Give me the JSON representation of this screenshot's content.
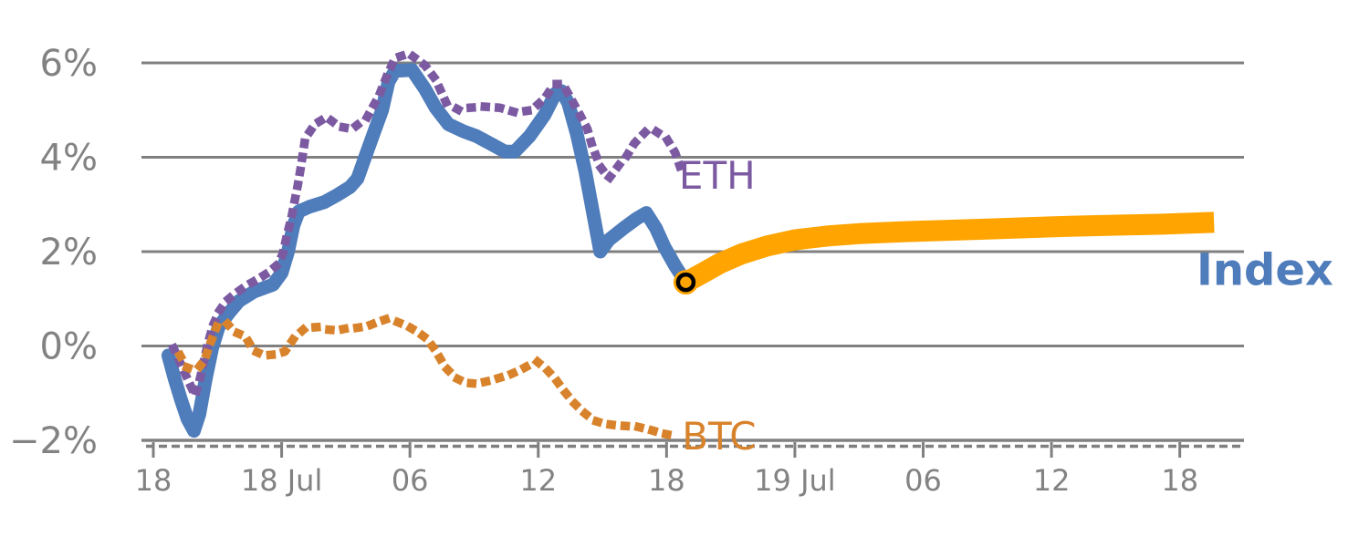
{
  "page": {
    "background": "#ffffff"
  },
  "chart_data": {
    "type": "line",
    "title": "",
    "xlabel": "",
    "ylabel": "",
    "x_axis": {
      "unit": "hours",
      "range": [
        0,
        51
      ],
      "major_tick_step": 6,
      "tick_positions": [
        0,
        6,
        12,
        18,
        24,
        30,
        36,
        42,
        48
      ],
      "tick_labels": [
        "18",
        "18 Jul",
        "06",
        "12",
        "18",
        "19 Jul",
        "06",
        "12",
        "18"
      ],
      "minor_ticks": "hourly-dashed-strip"
    },
    "y_axis": {
      "range": [
        -2,
        6
      ],
      "tick_values": [
        6,
        4,
        2,
        0,
        -2
      ],
      "tick_labels": [
        "6%",
        "4%",
        "2%",
        "0%",
        "−2%"
      ],
      "gridline_values": [
        6,
        4,
        2,
        0
      ]
    },
    "grid": true,
    "legend_position": "inline-labels",
    "colors": {
      "index": "#4F7CBA",
      "forecast": "#FFA400",
      "eth": "#7C5AA2",
      "btc": "#D8832C",
      "grid": "#808080",
      "axis_text": "#828282",
      "marker_ring": "#000000"
    },
    "series": [
      {
        "name": "Index",
        "style": "solid",
        "color": "#4F7CBA",
        "stroke_width": 15,
        "points": [
          [
            0.7,
            -0.2
          ],
          [
            1.0,
            -0.7
          ],
          [
            1.3,
            -1.15
          ],
          [
            1.6,
            -1.55
          ],
          [
            1.9,
            -1.8
          ],
          [
            2.15,
            -1.45
          ],
          [
            2.45,
            -0.7
          ],
          [
            2.75,
            -0.05
          ],
          [
            3.05,
            0.4
          ],
          [
            3.5,
            0.68
          ],
          [
            4.0,
            0.95
          ],
          [
            4.7,
            1.15
          ],
          [
            5.6,
            1.3
          ],
          [
            6.0,
            1.55
          ],
          [
            6.3,
            2.0
          ],
          [
            6.55,
            2.55
          ],
          [
            6.8,
            2.85
          ],
          [
            7.3,
            2.95
          ],
          [
            8.0,
            3.05
          ],
          [
            8.6,
            3.2
          ],
          [
            9.2,
            3.37
          ],
          [
            9.55,
            3.55
          ],
          [
            9.9,
            4.0
          ],
          [
            10.3,
            4.5
          ],
          [
            10.7,
            5.0
          ],
          [
            11.0,
            5.6
          ],
          [
            11.3,
            5.83
          ],
          [
            12.1,
            5.85
          ],
          [
            12.7,
            5.45
          ],
          [
            13.2,
            5.05
          ],
          [
            13.8,
            4.7
          ],
          [
            14.5,
            4.55
          ],
          [
            15.1,
            4.45
          ],
          [
            15.8,
            4.28
          ],
          [
            16.45,
            4.12
          ],
          [
            16.9,
            4.12
          ],
          [
            17.6,
            4.45
          ],
          [
            18.3,
            4.9
          ],
          [
            18.8,
            5.35
          ],
          [
            19.1,
            5.4
          ],
          [
            19.4,
            5.15
          ],
          [
            19.8,
            4.5
          ],
          [
            20.2,
            3.7
          ],
          [
            20.55,
            2.85
          ],
          [
            20.9,
            2.0
          ],
          [
            21.3,
            2.25
          ],
          [
            22.0,
            2.5
          ],
          [
            22.6,
            2.7
          ],
          [
            23.05,
            2.82
          ],
          [
            23.5,
            2.5
          ],
          [
            23.9,
            2.1
          ],
          [
            24.4,
            1.7
          ],
          [
            24.9,
            1.35
          ]
        ]
      },
      {
        "name": "Index forecast",
        "style": "solid",
        "color": "#FFA400",
        "stroke_width": 23,
        "points": [
          [
            24.9,
            1.35
          ],
          [
            25.6,
            1.52
          ],
          [
            26.5,
            1.75
          ],
          [
            27.5,
            1.95
          ],
          [
            28.7,
            2.12
          ],
          [
            30.0,
            2.25
          ],
          [
            31.5,
            2.33
          ],
          [
            33.0,
            2.38
          ],
          [
            35.0,
            2.42
          ],
          [
            37.0,
            2.45
          ],
          [
            39.0,
            2.48
          ],
          [
            41.0,
            2.51
          ],
          [
            43.0,
            2.54
          ],
          [
            45.0,
            2.56
          ],
          [
            47.0,
            2.58
          ],
          [
            49.6,
            2.62
          ]
        ]
      },
      {
        "name": "ETH",
        "style": "dotted",
        "color": "#7C5AA2",
        "stroke_width": 9.5,
        "points": [
          [
            0.95,
            -0.05
          ],
          [
            1.25,
            -0.35
          ],
          [
            1.5,
            -0.6
          ],
          [
            1.75,
            -0.85
          ],
          [
            1.95,
            -1.05
          ],
          [
            2.15,
            -0.75
          ],
          [
            2.35,
            -0.35
          ],
          [
            2.55,
            0.05
          ],
          [
            2.8,
            0.45
          ],
          [
            3.1,
            0.75
          ],
          [
            3.4,
            0.95
          ],
          [
            3.8,
            1.1
          ],
          [
            4.35,
            1.28
          ],
          [
            4.9,
            1.42
          ],
          [
            5.35,
            1.55
          ],
          [
            5.8,
            1.72
          ],
          [
            6.05,
            1.95
          ],
          [
            6.25,
            2.35
          ],
          [
            6.45,
            2.7
          ],
          [
            6.6,
            3.05
          ],
          [
            6.75,
            3.4
          ],
          [
            6.9,
            3.8
          ],
          [
            7.1,
            4.4
          ],
          [
            7.55,
            4.7
          ],
          [
            8.1,
            4.85
          ],
          [
            8.7,
            4.65
          ],
          [
            9.3,
            4.6
          ],
          [
            10.0,
            4.85
          ],
          [
            10.55,
            5.3
          ],
          [
            10.9,
            5.7
          ],
          [
            11.3,
            6.1
          ],
          [
            11.95,
            6.2
          ],
          [
            12.7,
            5.95
          ],
          [
            13.2,
            5.65
          ],
          [
            13.7,
            5.15
          ],
          [
            14.3,
            5.0
          ],
          [
            14.8,
            5.05
          ],
          [
            15.5,
            5.07
          ],
          [
            16.2,
            5.05
          ],
          [
            16.95,
            4.95
          ],
          [
            17.7,
            5.0
          ],
          [
            18.3,
            5.25
          ],
          [
            18.75,
            5.55
          ],
          [
            19.15,
            5.55
          ],
          [
            19.5,
            5.27
          ],
          [
            19.95,
            4.9
          ],
          [
            20.3,
            4.6
          ],
          [
            20.5,
            4.28
          ],
          [
            20.9,
            3.8
          ],
          [
            21.3,
            3.55
          ],
          [
            21.8,
            3.85
          ],
          [
            22.1,
            4.0
          ],
          [
            22.5,
            4.3
          ],
          [
            23.1,
            4.58
          ],
          [
            23.4,
            4.58
          ],
          [
            24.0,
            4.4
          ],
          [
            24.4,
            4.1
          ],
          [
            24.62,
            3.81
          ]
        ]
      },
      {
        "name": "BTC",
        "style": "dotted",
        "color": "#D8832C",
        "stroke_width": 9.5,
        "points": [
          [
            1.25,
            -0.2
          ],
          [
            1.55,
            -0.45
          ],
          [
            1.85,
            -0.5
          ],
          [
            2.1,
            -0.47
          ],
          [
            2.4,
            -0.3
          ],
          [
            2.7,
            0.1
          ],
          [
            3.0,
            0.45
          ],
          [
            3.4,
            0.5
          ],
          [
            3.8,
            0.3
          ],
          [
            4.3,
            0.2
          ],
          [
            4.7,
            -0.1
          ],
          [
            5.2,
            -0.2
          ],
          [
            5.7,
            -0.18
          ],
          [
            6.15,
            -0.12
          ],
          [
            6.6,
            0.18
          ],
          [
            7.1,
            0.38
          ],
          [
            7.65,
            0.4
          ],
          [
            8.1,
            0.35
          ],
          [
            8.6,
            0.33
          ],
          [
            9.0,
            0.37
          ],
          [
            9.45,
            0.38
          ],
          [
            10.0,
            0.42
          ],
          [
            10.45,
            0.5
          ],
          [
            10.9,
            0.57
          ],
          [
            11.35,
            0.52
          ],
          [
            11.9,
            0.42
          ],
          [
            12.35,
            0.3
          ],
          [
            12.8,
            0.15
          ],
          [
            13.2,
            -0.1
          ],
          [
            13.65,
            -0.45
          ],
          [
            14.15,
            -0.68
          ],
          [
            14.6,
            -0.78
          ],
          [
            15.1,
            -0.8
          ],
          [
            15.6,
            -0.75
          ],
          [
            16.15,
            -0.68
          ],
          [
            16.7,
            -0.6
          ],
          [
            17.2,
            -0.5
          ],
          [
            17.6,
            -0.4
          ],
          [
            17.95,
            -0.33
          ],
          [
            18.4,
            -0.5
          ],
          [
            18.8,
            -0.7
          ],
          [
            19.2,
            -0.95
          ],
          [
            19.65,
            -1.2
          ],
          [
            20.1,
            -1.4
          ],
          [
            20.6,
            -1.58
          ],
          [
            21.1,
            -1.65
          ],
          [
            21.6,
            -1.68
          ],
          [
            22.2,
            -1.7
          ],
          [
            22.7,
            -1.72
          ],
          [
            23.25,
            -1.78
          ],
          [
            23.75,
            -1.85
          ],
          [
            24.3,
            -1.9
          ],
          [
            24.55,
            -1.92
          ]
        ]
      }
    ],
    "marker": {
      "name": "forecast-start",
      "x": 24.9,
      "y": 1.35,
      "fill": "#FFA400",
      "ring_color": "#000000"
    },
    "annotations": [
      {
        "text": "ETH",
        "color": "#7C5AA2",
        "x": 24.58,
        "y": 3.33,
        "size": 42,
        "weight": "normal"
      },
      {
        "text": "BTC",
        "color": "#D8832C",
        "x": 24.72,
        "y": -2.19,
        "size": 42,
        "weight": "normal"
      },
      {
        "text": "Index",
        "color": "#4F7CBA",
        "x": 48.78,
        "y": 1.29,
        "size": 48,
        "weight": "bold"
      }
    ]
  }
}
